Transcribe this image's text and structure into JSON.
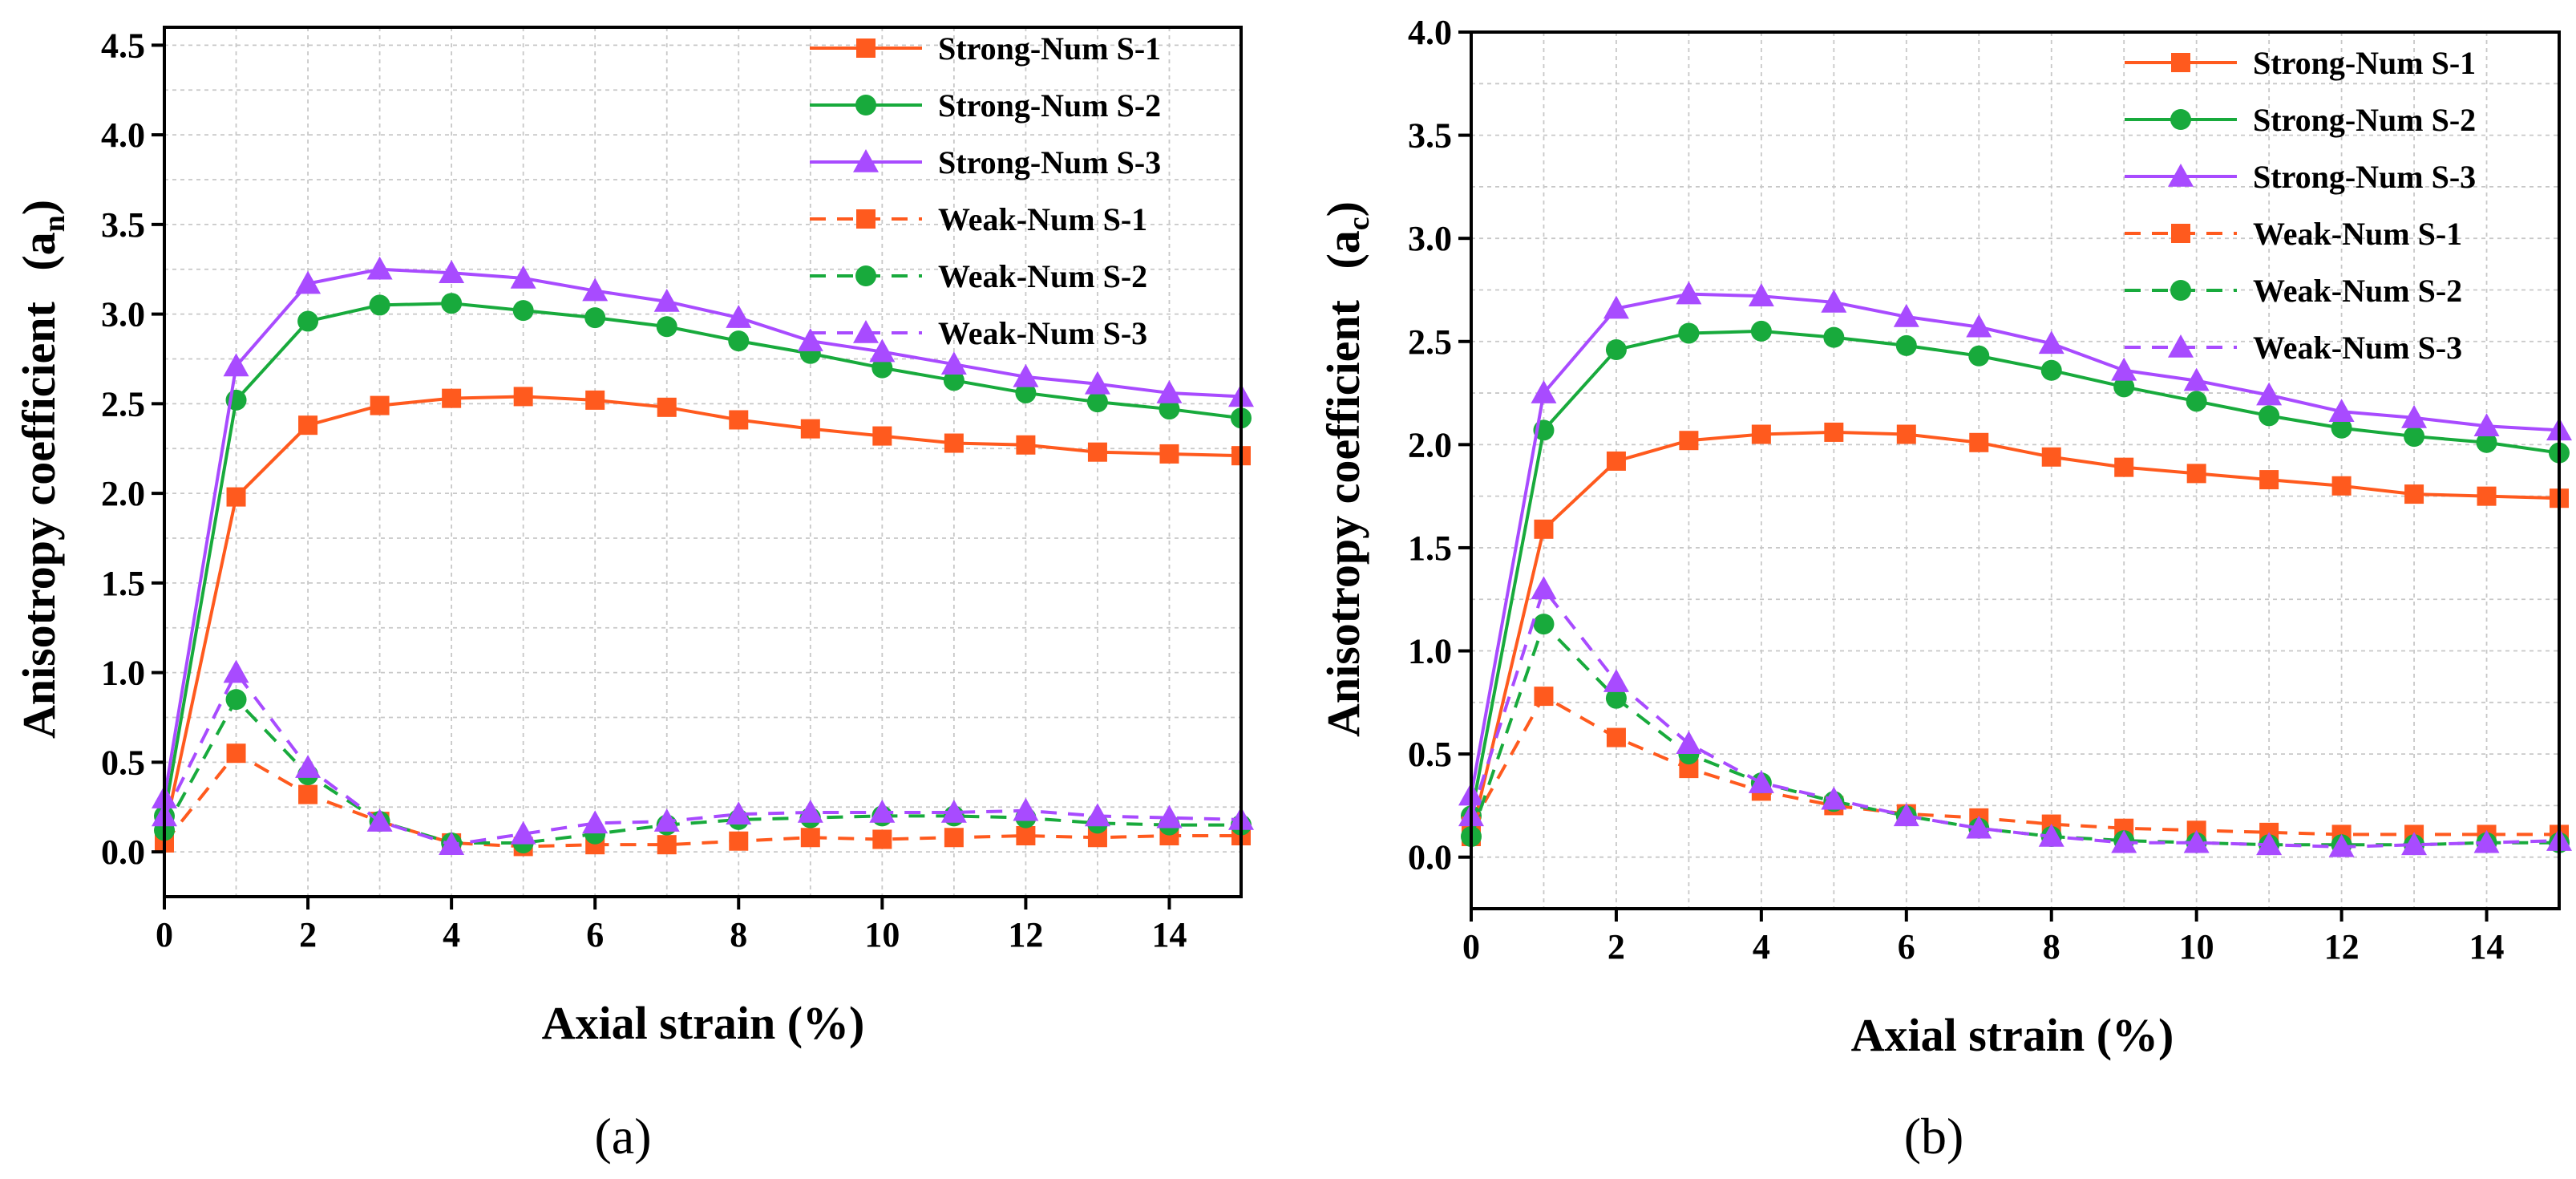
{
  "chart_data": [
    {
      "type": "line",
      "panel_label": "(a)",
      "xlabel": "Axial strain (%)",
      "ylabel": "Anisotropy coefficient",
      "ylabel_symbol": "a",
      "ylabel_subscript": "n",
      "xlim": [
        0,
        15
      ],
      "ylim": [
        -0.25,
        4.6
      ],
      "xticks": [
        "0",
        "2",
        "4",
        "6",
        "8",
        "10",
        "12",
        "14"
      ],
      "yticks": [
        "0.0",
        "0.5",
        "1.0",
        "1.5",
        "2.0",
        "2.5",
        "3.0",
        "3.5",
        "4.0",
        "4.5"
      ],
      "grid": true,
      "legend_position": "top-right",
      "x": [
        0,
        1,
        2,
        3,
        4,
        5,
        6,
        7,
        8,
        9,
        10,
        11,
        12,
        13,
        14,
        15
      ],
      "series": [
        {
          "name": "Strong-Num S-1",
          "color": "#FF5A1E",
          "marker": "square",
          "dashed": false,
          "values": [
            0.1,
            1.98,
            2.38,
            2.49,
            2.53,
            2.54,
            2.52,
            2.48,
            2.41,
            2.36,
            2.32,
            2.28,
            2.27,
            2.23,
            2.22,
            2.21
          ]
        },
        {
          "name": "Strong-Num S-2",
          "color": "#18AA3C",
          "marker": "circle",
          "dashed": false,
          "values": [
            0.2,
            2.52,
            2.96,
            3.05,
            3.06,
            3.02,
            2.98,
            2.93,
            2.85,
            2.78,
            2.7,
            2.63,
            2.56,
            2.51,
            2.47,
            2.42
          ]
        },
        {
          "name": "Strong-Num S-3",
          "color": "#A84BFF",
          "marker": "triangle",
          "dashed": false,
          "values": [
            0.3,
            2.71,
            3.17,
            3.25,
            3.23,
            3.2,
            3.13,
            3.07,
            2.98,
            2.85,
            2.79,
            2.72,
            2.65,
            2.61,
            2.56,
            2.54
          ]
        },
        {
          "name": "Weak-Num S-1",
          "color": "#FF5A1E",
          "marker": "square",
          "dashed": true,
          "values": [
            0.05,
            0.55,
            0.32,
            0.17,
            0.05,
            0.03,
            0.04,
            0.04,
            0.06,
            0.08,
            0.07,
            0.08,
            0.09,
            0.08,
            0.09,
            0.09
          ]
        },
        {
          "name": "Weak-Num S-2",
          "color": "#18AA3C",
          "marker": "circle",
          "dashed": true,
          "values": [
            0.12,
            0.85,
            0.43,
            0.17,
            0.05,
            0.05,
            0.1,
            0.15,
            0.18,
            0.19,
            0.2,
            0.2,
            0.19,
            0.16,
            0.15,
            0.15
          ]
        },
        {
          "name": "Weak-Num S-3",
          "color": "#A84BFF",
          "marker": "triangle",
          "dashed": true,
          "values": [
            0.2,
            1.0,
            0.47,
            0.17,
            0.04,
            0.1,
            0.16,
            0.17,
            0.21,
            0.22,
            0.22,
            0.22,
            0.23,
            0.2,
            0.19,
            0.18
          ]
        }
      ]
    },
    {
      "type": "line",
      "panel_label": "(b)",
      "xlabel": "Axial strain (%)",
      "ylabel": "Anisotropy coefficient",
      "ylabel_symbol": "a",
      "ylabel_subscript": "c",
      "xlim": [
        0,
        15
      ],
      "ylim": [
        -0.25,
        4.0
      ],
      "xticks": [
        "0",
        "2",
        "4",
        "6",
        "8",
        "10",
        "12",
        "14"
      ],
      "yticks": [
        "0.0",
        "0.5",
        "1.0",
        "1.5",
        "2.0",
        "2.5",
        "3.0",
        "3.5",
        "4.0"
      ],
      "grid": true,
      "legend_position": "top-right",
      "x": [
        0,
        1,
        2,
        3,
        4,
        5,
        6,
        7,
        8,
        9,
        10,
        11,
        12,
        13,
        14,
        15
      ],
      "series": [
        {
          "name": "Strong-Num S-1",
          "color": "#FF5A1E",
          "marker": "square",
          "dashed": false,
          "values": [
            0.1,
            1.59,
            1.92,
            2.02,
            2.05,
            2.06,
            2.05,
            2.01,
            1.94,
            1.89,
            1.86,
            1.83,
            1.8,
            1.76,
            1.75,
            1.74
          ]
        },
        {
          "name": "Strong-Num S-2",
          "color": "#18AA3C",
          "marker": "circle",
          "dashed": false,
          "values": [
            0.2,
            2.07,
            2.46,
            2.54,
            2.55,
            2.52,
            2.48,
            2.43,
            2.36,
            2.28,
            2.21,
            2.14,
            2.08,
            2.04,
            2.01,
            1.96
          ]
        },
        {
          "name": "Strong-Num S-3",
          "color": "#A84BFF",
          "marker": "triangle",
          "dashed": false,
          "values": [
            0.3,
            2.25,
            2.66,
            2.73,
            2.72,
            2.69,
            2.62,
            2.57,
            2.49,
            2.36,
            2.31,
            2.24,
            2.16,
            2.13,
            2.09,
            2.07
          ]
        },
        {
          "name": "Weak-Num S-1",
          "color": "#FF5A1E",
          "marker": "square",
          "dashed": true,
          "values": [
            0.15,
            0.78,
            0.58,
            0.43,
            0.32,
            0.25,
            0.21,
            0.19,
            0.16,
            0.14,
            0.13,
            0.12,
            0.11,
            0.11,
            0.11,
            0.11
          ]
        },
        {
          "name": "Weak-Num S-2",
          "color": "#18AA3C",
          "marker": "circle",
          "dashed": true,
          "values": [
            0.1,
            1.13,
            0.77,
            0.5,
            0.36,
            0.27,
            0.2,
            0.14,
            0.1,
            0.08,
            0.07,
            0.06,
            0.06,
            0.06,
            0.07,
            0.07
          ]
        },
        {
          "name": "Weak-Num S-3",
          "color": "#A84BFF",
          "marker": "triangle",
          "dashed": true,
          "values": [
            0.2,
            1.3,
            0.85,
            0.55,
            0.36,
            0.28,
            0.2,
            0.14,
            0.1,
            0.07,
            0.07,
            0.06,
            0.05,
            0.06,
            0.07,
            0.08
          ]
        }
      ]
    }
  ]
}
